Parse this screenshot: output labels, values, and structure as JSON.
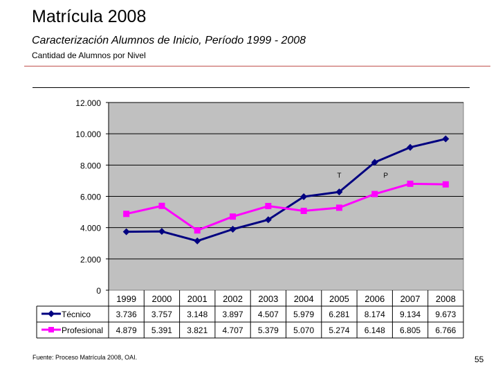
{
  "page": {
    "title": "Matrícula 2008",
    "subtitle": "Caracterización Alumnos de Inicio, Período 1999 - 2008",
    "caption": "Cantidad de Alumnos por Nivel",
    "footer": "Fuente: Proceso Matrícula 2008, OAI.",
    "page_number": "55"
  },
  "colors": {
    "plot_bg": "#c0c0c0",
    "tecnico": "#000080",
    "profesional": "#ff00ff",
    "rule": "#c0504d"
  },
  "chart_data": {
    "type": "line",
    "title": "",
    "xlabel": "",
    "ylabel": "",
    "ylim": [
      0,
      12000
    ],
    "yticks": [
      0,
      2000,
      4000,
      6000,
      8000,
      10000,
      12000
    ],
    "ytick_labels": [
      "0",
      "2.000",
      "4.000",
      "6.000",
      "8.000",
      "10.000",
      "12.000"
    ],
    "grid": "horizontal",
    "categories": [
      "1999",
      "2000",
      "2001",
      "2002",
      "2003",
      "2004",
      "2005",
      "2006",
      "2007",
      "2008"
    ],
    "series": [
      {
        "name": "Técnico",
        "marker": "diamond",
        "values": [
          3736,
          3757,
          3148,
          3897,
          4507,
          5979,
          6281,
          8174,
          9134,
          9673
        ],
        "value_labels": [
          "3.736",
          "3.757",
          "3.148",
          "3.897",
          "4.507",
          "5.979",
          "6.281",
          "8.174",
          "9.134",
          "9.673"
        ]
      },
      {
        "name": "Profesional",
        "marker": "square",
        "values": [
          4879,
          5391,
          3821,
          4707,
          5379,
          5070,
          5274,
          6148,
          6805,
          6766
        ],
        "value_labels": [
          "4.879",
          "5.391",
          "3.821",
          "4.707",
          "5.379",
          "5.070",
          "5.274",
          "6.148",
          "6.805",
          "6.766"
        ]
      }
    ],
    "annotations": [
      {
        "text": "T",
        "category": "2005",
        "value": 7200
      },
      {
        "text": "P",
        "category": "2006",
        "value": 7200
      }
    ]
  }
}
